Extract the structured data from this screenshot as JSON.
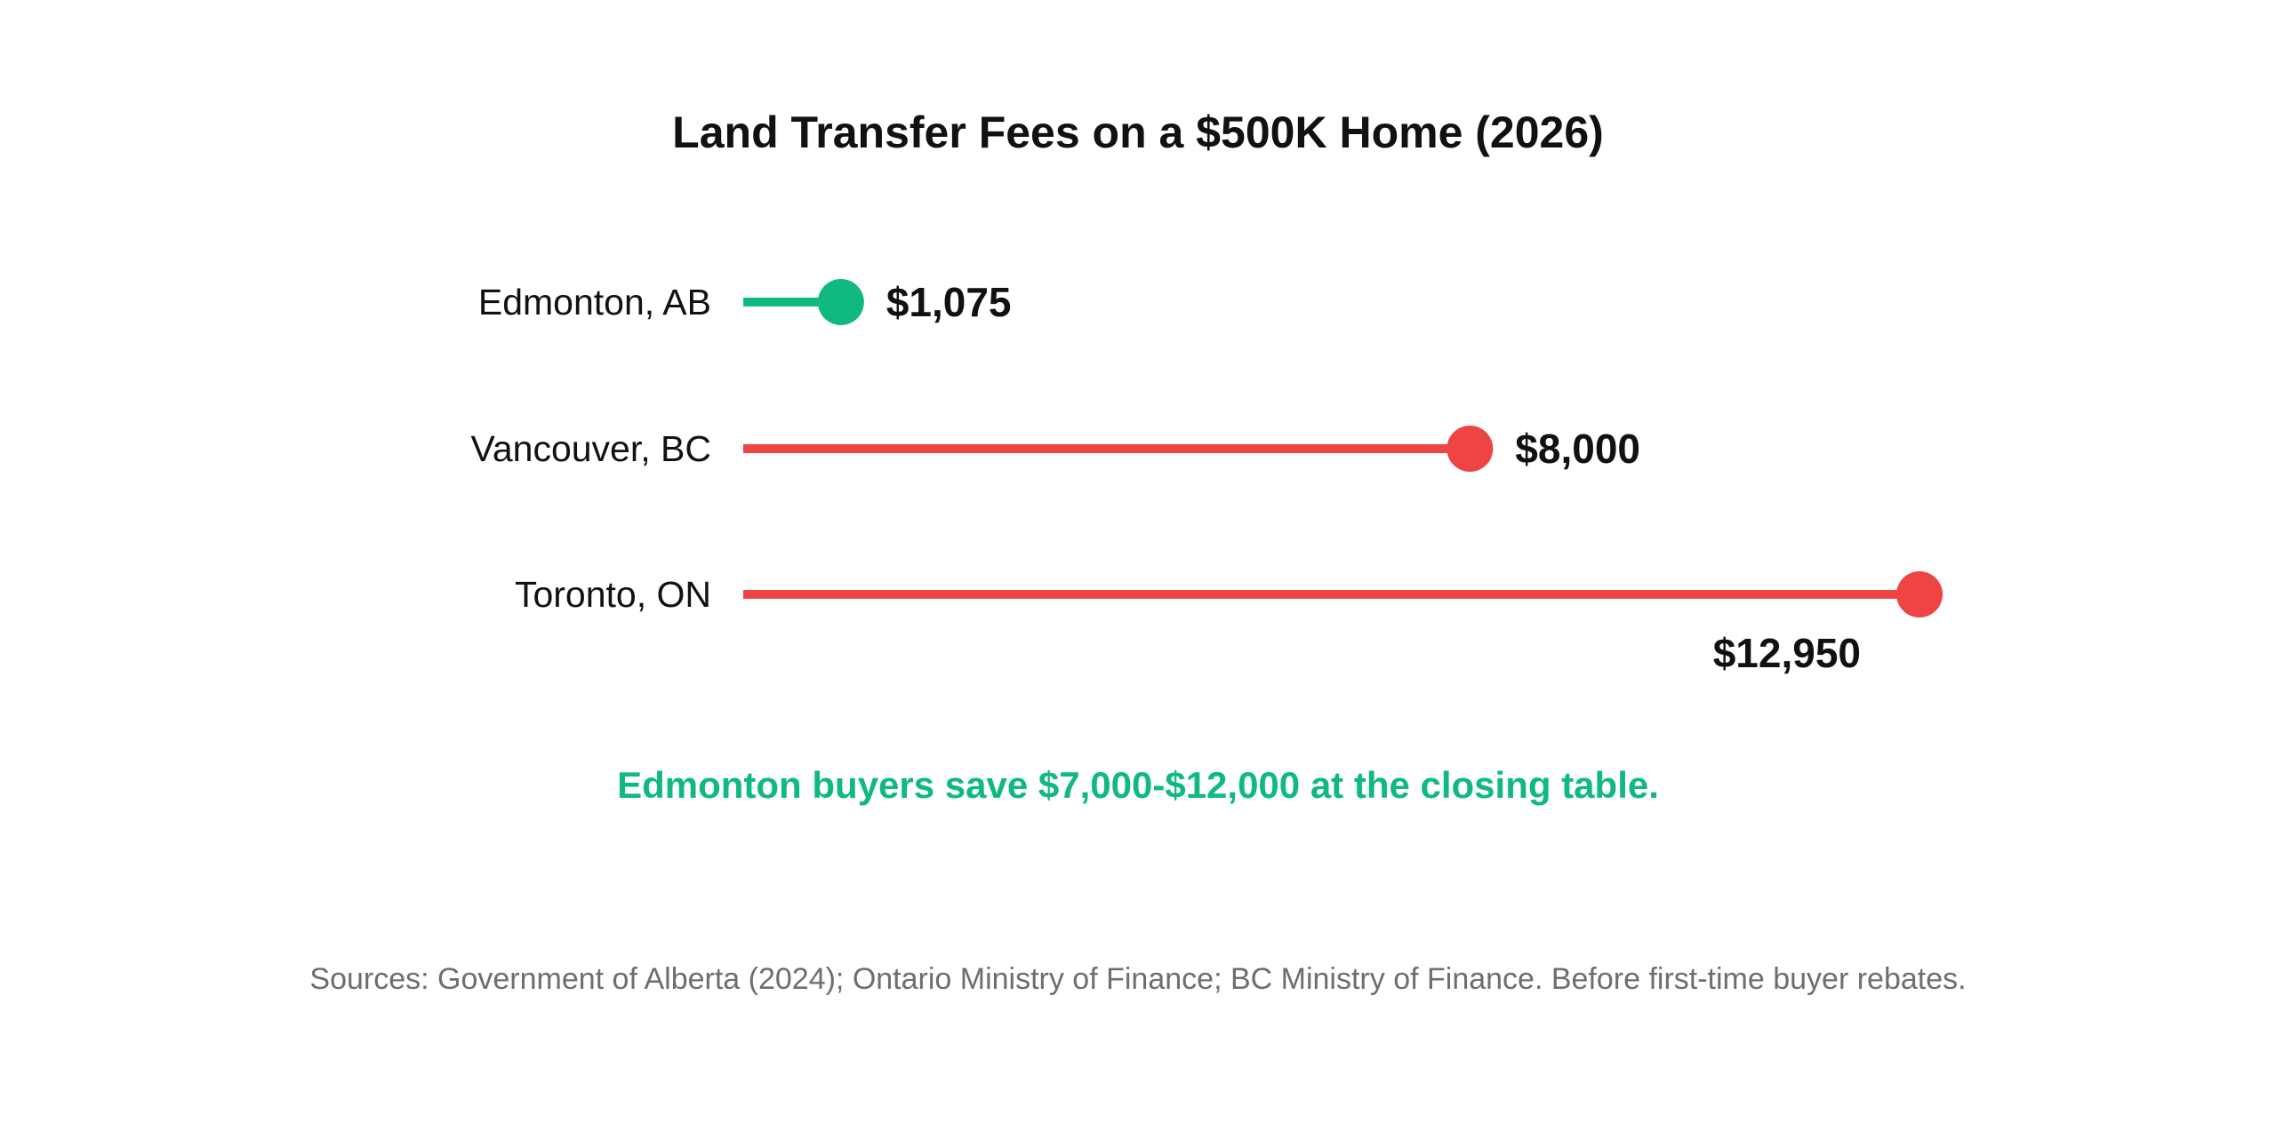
{
  "chart_data": {
    "type": "lollipop",
    "title": "Land Transfer Fees on a $500K Home (2026)",
    "categories": [
      "Edmonton, AB",
      "Vancouver, BC",
      "Toronto, ON"
    ],
    "values": [
      1075,
      8000,
      12950
    ],
    "value_labels": [
      "$1,075",
      "$8,000",
      "$12,950"
    ],
    "colors": [
      "#10b981",
      "#ef4444",
      "#ef4444"
    ],
    "xlim": [
      0,
      12950
    ],
    "grid": false,
    "annotation": "Edmonton buyers save $7,000-$12,000 at the closing table.",
    "annotation_color": "#10b981",
    "source": "Sources: Government of Alberta (2024); Ontario Ministry of Finance; BC Ministry of Finance. Before first-time buyer rebates."
  }
}
